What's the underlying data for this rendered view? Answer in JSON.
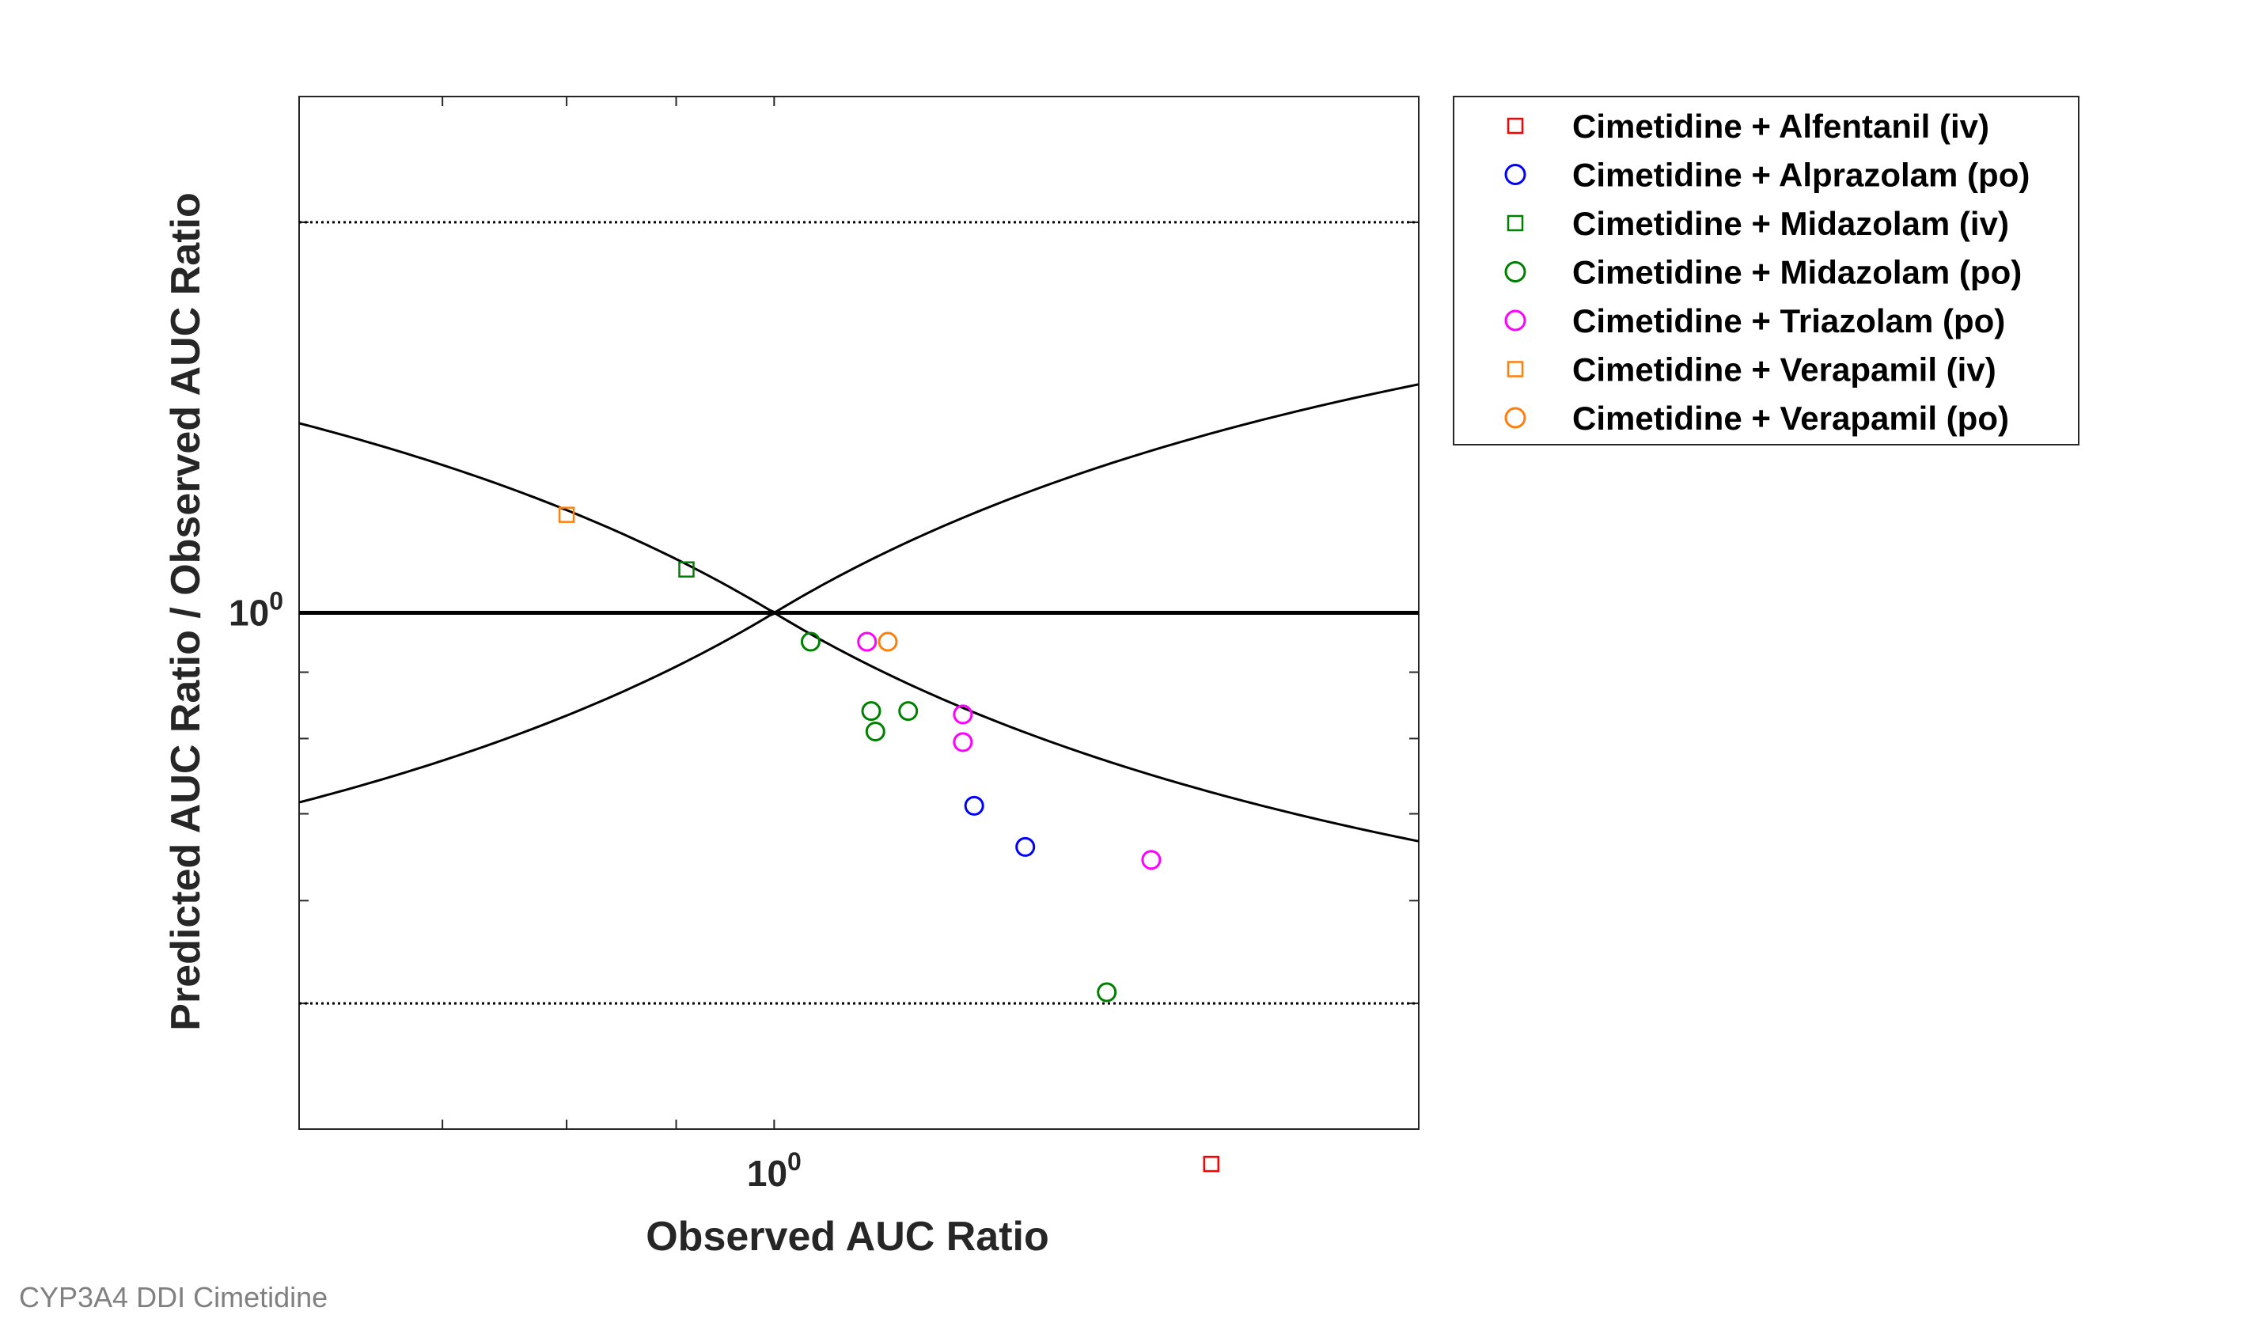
{
  "footer": {
    "caption": "CYP3A4 DDI Cimetidine"
  },
  "chart_data": {
    "type": "scatter",
    "title": "",
    "xlabel": "Observed AUC Ratio",
    "ylabel": "Predicted AUC Ratio / Observed AUC Ratio",
    "xscale": "log",
    "yscale": "log",
    "xlim": [
      0.6,
      2.0
    ],
    "ylim": [
      0.4,
      2.5
    ],
    "x_tick_label": {
      "base": "10",
      "exponent": "0",
      "value": 1
    },
    "y_tick_label": {
      "base": "10",
      "exponent": "0",
      "value": 1
    },
    "grid": false,
    "legend_position": "outside-right",
    "reference_lines": [
      {
        "name": "identity",
        "y": 1.0,
        "style": "solid-thick"
      },
      {
        "name": "upper-2-fold",
        "y": 2.0,
        "style": "dotted"
      },
      {
        "name": "lower-2-fold",
        "y": 0.5,
        "style": "dotted"
      },
      {
        "name": "guest-upper",
        "style": "solid-curve"
      },
      {
        "name": "guest-lower",
        "style": "solid-curve"
      }
    ],
    "series": [
      {
        "name": "Cimetidine + Alfentanil (iv)",
        "marker": "square",
        "color": "#ff0000",
        "points": [
          [
            1.6,
            0.376
          ]
        ]
      },
      {
        "name": "Cimetidine + Alprazolam (po)",
        "marker": "circle",
        "color": "#0000ff",
        "points": [
          [
            1.24,
            0.71
          ],
          [
            1.31,
            0.66
          ]
        ]
      },
      {
        "name": "Cimetidine + Midazolam (iv)",
        "marker": "square",
        "color": "#008000",
        "points": [
          [
            0.91,
            1.08
          ]
        ]
      },
      {
        "name": "Cimetidine + Midazolam (po)",
        "marker": "circle",
        "color": "#008000",
        "points": [
          [
            1.04,
            0.95
          ],
          [
            1.11,
            0.84
          ],
          [
            1.115,
            0.81
          ],
          [
            1.155,
            0.84
          ],
          [
            1.43,
            0.51
          ]
        ]
      },
      {
        "name": "Cimetidine + Triazolam (po)",
        "marker": "circle",
        "color": "#ff00ff",
        "points": [
          [
            1.105,
            0.95
          ],
          [
            1.225,
            0.835
          ],
          [
            1.225,
            0.795
          ],
          [
            1.5,
            0.645
          ]
        ]
      },
      {
        "name": "Cimetidine + Verapamil (iv)",
        "marker": "square",
        "color": "#ff7f0e",
        "points": [
          [
            0.8,
            1.19
          ]
        ]
      },
      {
        "name": "Cimetidine + Verapamil (po)",
        "marker": "circle",
        "color": "#ff7f0e",
        "points": [
          [
            1.13,
            0.95
          ]
        ]
      }
    ]
  }
}
